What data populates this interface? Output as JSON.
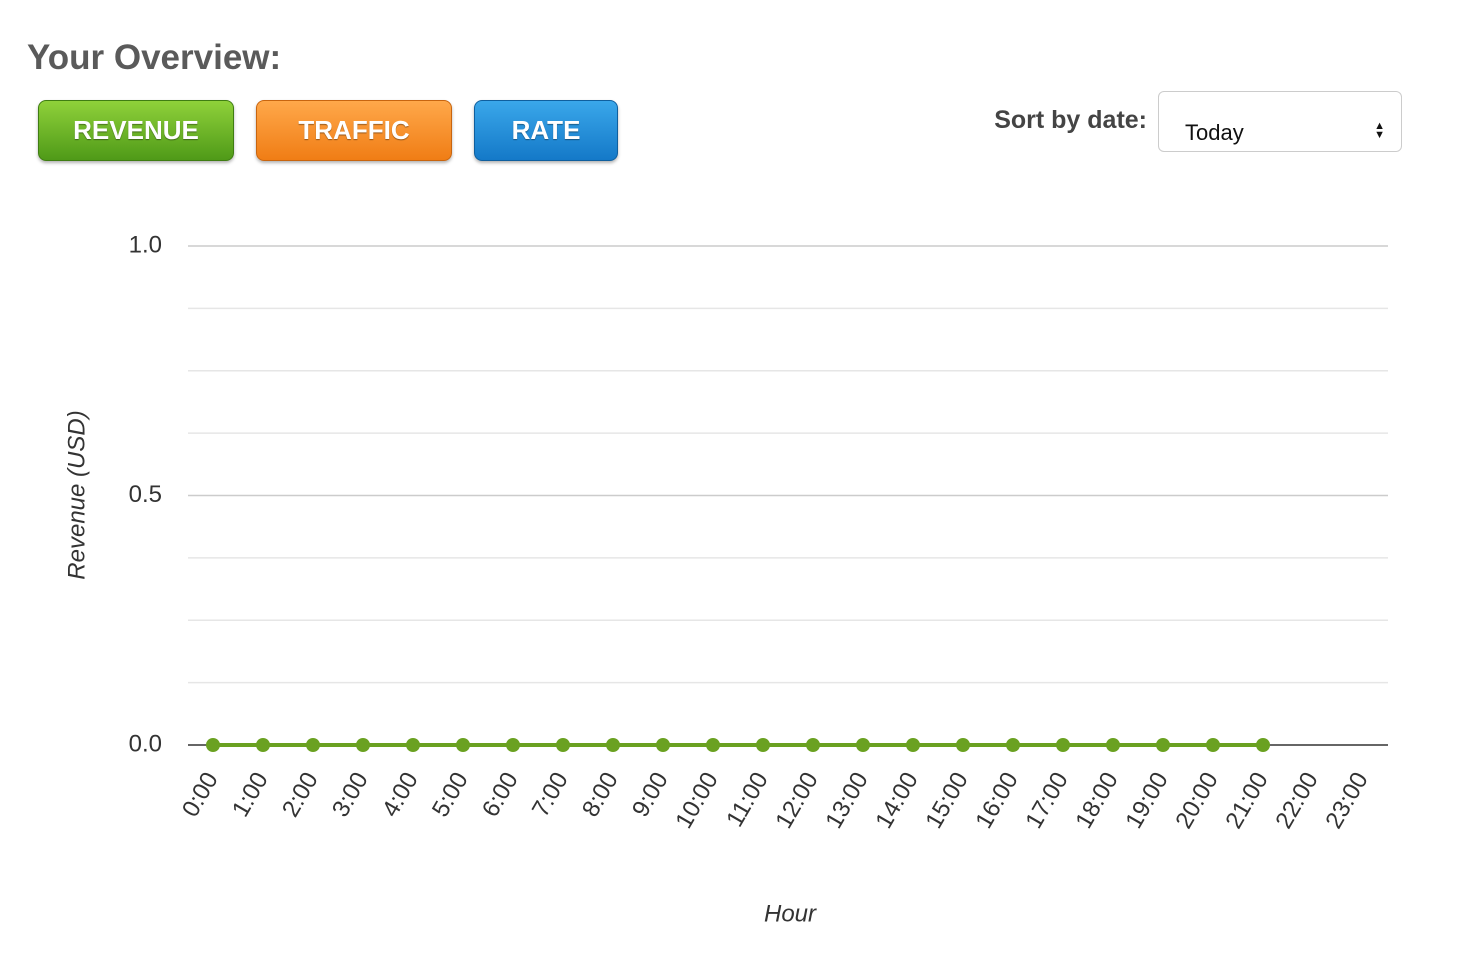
{
  "header": {
    "title": "Your Overview:"
  },
  "buttons": [
    "REVENUE",
    "TRAFFIC",
    "RATE"
  ],
  "sort": {
    "label": "Sort by date:",
    "value": "Today"
  },
  "chart_data": {
    "type": "line",
    "color": "#6aa121",
    "x_label": "Hour",
    "y_label": "Revenue (USD)",
    "categories": [
      "0:00",
      "1:00",
      "2:00",
      "3:00",
      "4:00",
      "5:00",
      "6:00",
      "7:00",
      "8:00",
      "9:00",
      "10:00",
      "11:00",
      "12:00",
      "13:00",
      "14:00",
      "15:00",
      "16:00",
      "17:00",
      "18:00",
      "19:00",
      "20:00",
      "21:00",
      "22:00",
      "23:00"
    ],
    "values": [
      0,
      0,
      0,
      0,
      0,
      0,
      0,
      0,
      0,
      0,
      0,
      0,
      0,
      0,
      0,
      0,
      0,
      0,
      0,
      0,
      0,
      0,
      null,
      null
    ],
    "ylim": [
      0,
      1
    ],
    "yticks": [
      {
        "value": 0,
        "label": "0.0"
      },
      {
        "value": 0.5,
        "label": "0.5"
      },
      {
        "value": 1,
        "label": "1.0"
      }
    ],
    "grid": true
  }
}
